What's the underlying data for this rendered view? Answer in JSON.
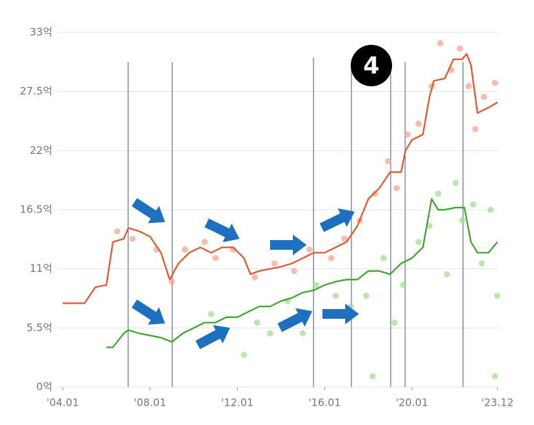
{
  "chart_data": {
    "type": "line",
    "badge": "4",
    "xlim": [
      2004.0,
      2023.917
    ],
    "ylim": [
      0,
      33
    ],
    "xticks": [
      {
        "value": 2004.0,
        "label": "'04.01"
      },
      {
        "value": 2008.0,
        "label": "'08.01"
      },
      {
        "value": 2012.0,
        "label": "'12.01"
      },
      {
        "value": 2016.0,
        "label": "'16.01"
      },
      {
        "value": 2020.0,
        "label": "'20.01"
      },
      {
        "value": 2023.917,
        "label": "'23.12"
      }
    ],
    "yticks": [
      {
        "value": 0,
        "label": "0억"
      },
      {
        "value": 5.5,
        "label": "5.5억"
      },
      {
        "value": 11,
        "label": "11억"
      },
      {
        "value": 16.5,
        "label": "16.5억"
      },
      {
        "value": 22,
        "label": "22억"
      },
      {
        "value": 27.5,
        "label": "27.5억"
      },
      {
        "value": 33,
        "label": "33억"
      }
    ],
    "grid": true,
    "series": [
      {
        "type": "scatter",
        "color": "#f4a08a",
        "x": [
          2006.5,
          2007.2,
          2008.3,
          2009.0,
          2009.6,
          2010.5,
          2011.0,
          2011.8,
          2012.8,
          2013.7,
          2014.6,
          2015.3,
          2016.3,
          2016.9,
          2017.6,
          2018.3,
          2018.9,
          2019.3,
          2019.8,
          2020.3,
          2020.9,
          2021.3,
          2021.8,
          2022.2,
          2022.6,
          2022.9,
          2023.3,
          2023.8
        ],
        "values": [
          14.5,
          13.8,
          12.8,
          9.8,
          12.8,
          13.5,
          12.0,
          12.8,
          10.2,
          11.5,
          10.8,
          12.8,
          12.0,
          13.8,
          15.5,
          18.0,
          21.0,
          18.5,
          23.5,
          24.5,
          28.0,
          32.0,
          29.5,
          31.5,
          28.0,
          24.0,
          27.0,
          28.3
        ]
      },
      {
        "type": "scatter",
        "color": "#9fda90",
        "x": [
          2010.8,
          2011.4,
          2012.3,
          2012.9,
          2013.5,
          2014.3,
          2015.0,
          2015.6,
          2016.5,
          2017.2,
          2017.9,
          2018.2,
          2018.7,
          2019.2,
          2019.6,
          2020.3,
          2020.8,
          2021.2,
          2021.6,
          2022.0,
          2022.3,
          2022.8,
          2023.2,
          2023.6,
          2023.8,
          2023.9
        ],
        "values": [
          6.8,
          5.0,
          3.0,
          6.0,
          5.0,
          8.0,
          5.0,
          9.5,
          8.5,
          7.5,
          8.5,
          1.0,
          12.0,
          6.0,
          9.5,
          13.5,
          15.0,
          18.0,
          10.5,
          19.0,
          15.5,
          17.0,
          11.5,
          16.5,
          1.0,
          8.5
        ]
      },
      {
        "type": "line",
        "color": "#e8532b",
        "x": [
          2004.0,
          2005.0,
          2005.5,
          2006.0,
          2006.3,
          2006.8,
          2007.0,
          2007.5,
          2008.0,
          2008.5,
          2008.9,
          2009.3,
          2009.8,
          2010.3,
          2010.8,
          2011.3,
          2011.8,
          2012.3,
          2012.6,
          2013.0,
          2013.5,
          2014.0,
          2014.5,
          2015.0,
          2015.5,
          2016.0,
          2016.5,
          2017.0,
          2017.5,
          2018.0,
          2018.5,
          2019.0,
          2019.5,
          2019.7,
          2020.0,
          2020.5,
          2020.8,
          2021.0,
          2021.5,
          2021.9,
          2022.3,
          2022.5,
          2022.7,
          2023.0,
          2023.5,
          2023.917
        ],
        "values": [
          7.8,
          7.8,
          9.3,
          9.5,
          13.5,
          13.8,
          14.8,
          14.5,
          14.0,
          12.5,
          10.0,
          11.5,
          12.5,
          13.0,
          12.5,
          13.0,
          13.0,
          12.0,
          10.5,
          10.8,
          11.0,
          11.2,
          11.5,
          12.0,
          12.5,
          12.5,
          13.0,
          13.5,
          15.0,
          17.5,
          18.5,
          20.0,
          20.0,
          22.0,
          23.0,
          23.5,
          27.0,
          28.5,
          28.7,
          30.5,
          30.5,
          31.0,
          30.0,
          25.5,
          26.0,
          26.5
        ]
      },
      {
        "type": "line",
        "color": "#3aa52a",
        "x": [
          2006.0,
          2006.3,
          2006.8,
          2007.0,
          2007.5,
          2008.0,
          2008.5,
          2009.0,
          2009.5,
          2010.0,
          2010.5,
          2011.0,
          2011.5,
          2012.0,
          2012.5,
          2013.0,
          2013.5,
          2014.0,
          2014.5,
          2015.0,
          2015.5,
          2016.0,
          2016.5,
          2017.0,
          2017.5,
          2018.0,
          2018.5,
          2019.0,
          2019.5,
          2020.0,
          2020.5,
          2020.9,
          2021.2,
          2021.5,
          2022.0,
          2022.4,
          2022.7,
          2023.0,
          2023.5,
          2023.917
        ],
        "values": [
          3.7,
          3.7,
          5.0,
          5.3,
          5.0,
          4.8,
          4.6,
          4.2,
          5.0,
          5.5,
          6.0,
          6.0,
          6.5,
          6.5,
          7.0,
          7.5,
          7.5,
          8.0,
          8.3,
          8.8,
          9.0,
          9.5,
          9.8,
          10.0,
          10.0,
          10.8,
          10.8,
          10.5,
          11.5,
          12.0,
          13.0,
          17.5,
          16.5,
          16.5,
          16.7,
          16.7,
          13.5,
          12.5,
          12.5,
          13.5
        ]
      }
    ]
  }
}
